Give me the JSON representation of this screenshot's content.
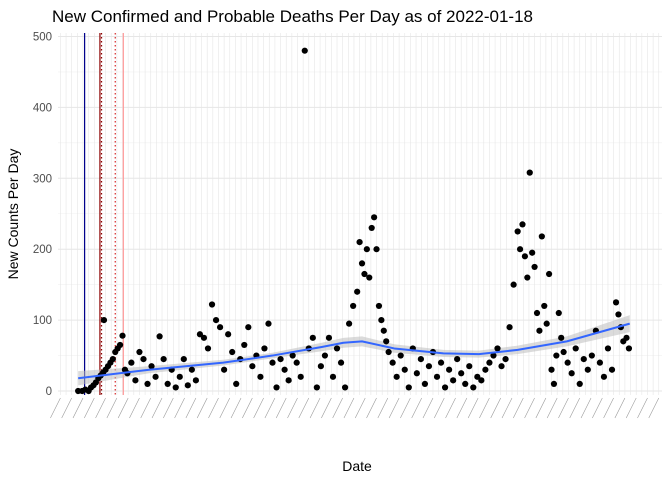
{
  "chart_data": {
    "type": "scatter",
    "title": "New Confirmed and Probable Deaths Per Day as of 2022-01-18",
    "xlabel": "Date",
    "ylabel": "New Counts Per Day",
    "ylim": [
      0,
      500
    ],
    "y_ticks": [
      0,
      100,
      200,
      300,
      400,
      500
    ],
    "xlim": [
      "2020-02-09",
      "2022-02-27"
    ],
    "x_tick_labels": "illegible",
    "grid": true,
    "legend": "none",
    "colors": {
      "points": "#000000",
      "trend": "#3366ff",
      "band": "#bdbdbd",
      "grid_major": "#e6e6e6",
      "grid_minor": "#f0f0f0",
      "vline_navy": "#00008b",
      "vline_darkred": "#8b0000",
      "vline_red_dotted": "#d62728",
      "vline_pink": "#ff9999"
    },
    "reference_lines": [
      {
        "date": "2020-03-13",
        "style": "solid",
        "color": "#00008b"
      },
      {
        "date": "2020-04-01",
        "style": "solid",
        "color": "#8b0000"
      },
      {
        "date": "2020-04-03",
        "style": "dotted",
        "color": "#8b0000"
      },
      {
        "date": "2020-04-20",
        "style": "dotted",
        "color": "#d62728"
      },
      {
        "date": "2020-04-30",
        "style": "solid",
        "color": "#ff9999"
      }
    ],
    "series": [
      {
        "values": [
          [
            "2020-03-05",
            0
          ],
          [
            "2020-03-10",
            0
          ],
          [
            "2020-03-14",
            2
          ],
          [
            "2020-03-18",
            0
          ],
          [
            "2020-03-21",
            5
          ],
          [
            "2020-03-24",
            8
          ],
          [
            "2020-03-27",
            12
          ],
          [
            "2020-03-30",
            18
          ],
          [
            "2020-04-02",
            22
          ],
          [
            "2020-04-05",
            26
          ],
          [
            "2020-04-06",
            100
          ],
          [
            "2020-04-08",
            30
          ],
          [
            "2020-04-11",
            35
          ],
          [
            "2020-04-14",
            40
          ],
          [
            "2020-04-17",
            45
          ],
          [
            "2020-04-20",
            55
          ],
          [
            "2020-04-23",
            60
          ],
          [
            "2020-04-26",
            65
          ],
          [
            "2020-04-29",
            78
          ],
          [
            "2020-05-02",
            30
          ],
          [
            "2020-05-05",
            25
          ],
          [
            "2020-05-10",
            40
          ],
          [
            "2020-05-15",
            15
          ],
          [
            "2020-05-20",
            55
          ],
          [
            "2020-05-25",
            45
          ],
          [
            "2020-05-30",
            10
          ],
          [
            "2020-06-04",
            35
          ],
          [
            "2020-06-09",
            20
          ],
          [
            "2020-06-14",
            77
          ],
          [
            "2020-06-19",
            45
          ],
          [
            "2020-06-24",
            10
          ],
          [
            "2020-06-29",
            30
          ],
          [
            "2020-07-04",
            5
          ],
          [
            "2020-07-09",
            20
          ],
          [
            "2020-07-14",
            45
          ],
          [
            "2020-07-19",
            8
          ],
          [
            "2020-07-24",
            30
          ],
          [
            "2020-07-29",
            15
          ],
          [
            "2020-08-03",
            80
          ],
          [
            "2020-08-08",
            75
          ],
          [
            "2020-08-13",
            60
          ],
          [
            "2020-08-18",
            122
          ],
          [
            "2020-08-23",
            100
          ],
          [
            "2020-08-28",
            90
          ],
          [
            "2020-09-02",
            30
          ],
          [
            "2020-09-07",
            80
          ],
          [
            "2020-09-12",
            55
          ],
          [
            "2020-09-17",
            10
          ],
          [
            "2020-09-22",
            45
          ],
          [
            "2020-09-27",
            65
          ],
          [
            "2020-10-02",
            90
          ],
          [
            "2020-10-07",
            35
          ],
          [
            "2020-10-12",
            50
          ],
          [
            "2020-10-17",
            20
          ],
          [
            "2020-10-22",
            60
          ],
          [
            "2020-10-27",
            95
          ],
          [
            "2020-11-01",
            40
          ],
          [
            "2020-11-06",
            5
          ],
          [
            "2020-11-11",
            45
          ],
          [
            "2020-11-16",
            30
          ],
          [
            "2020-11-21",
            15
          ],
          [
            "2020-11-26",
            50
          ],
          [
            "2020-12-01",
            40
          ],
          [
            "2020-12-06",
            20
          ],
          [
            "2020-12-11",
            480
          ],
          [
            "2020-12-16",
            60
          ],
          [
            "2020-12-21",
            75
          ],
          [
            "2020-12-26",
            5
          ],
          [
            "2020-12-31",
            35
          ],
          [
            "2021-01-05",
            50
          ],
          [
            "2021-01-10",
            75
          ],
          [
            "2021-01-15",
            20
          ],
          [
            "2021-01-20",
            60
          ],
          [
            "2021-01-25",
            40
          ],
          [
            "2021-01-30",
            5
          ],
          [
            "2021-02-04",
            95
          ],
          [
            "2021-02-09",
            120
          ],
          [
            "2021-02-14",
            140
          ],
          [
            "2021-02-17",
            210
          ],
          [
            "2021-02-20",
            180
          ],
          [
            "2021-02-23",
            165
          ],
          [
            "2021-02-26",
            200
          ],
          [
            "2021-03-01",
            160
          ],
          [
            "2021-03-04",
            230
          ],
          [
            "2021-03-07",
            245
          ],
          [
            "2021-03-10",
            200
          ],
          [
            "2021-03-13",
            120
          ],
          [
            "2021-03-16",
            100
          ],
          [
            "2021-03-19",
            85
          ],
          [
            "2021-03-22",
            70
          ],
          [
            "2021-03-25",
            55
          ],
          [
            "2021-03-30",
            40
          ],
          [
            "2021-04-04",
            20
          ],
          [
            "2021-04-09",
            50
          ],
          [
            "2021-04-14",
            30
          ],
          [
            "2021-04-19",
            5
          ],
          [
            "2021-04-24",
            60
          ],
          [
            "2021-04-29",
            25
          ],
          [
            "2021-05-04",
            45
          ],
          [
            "2021-05-09",
            10
          ],
          [
            "2021-05-14",
            35
          ],
          [
            "2021-05-19",
            55
          ],
          [
            "2021-05-24",
            20
          ],
          [
            "2021-05-29",
            40
          ],
          [
            "2021-06-03",
            5
          ],
          [
            "2021-06-08",
            30
          ],
          [
            "2021-06-13",
            15
          ],
          [
            "2021-06-18",
            45
          ],
          [
            "2021-06-23",
            25
          ],
          [
            "2021-06-28",
            10
          ],
          [
            "2021-07-03",
            35
          ],
          [
            "2021-07-08",
            5
          ],
          [
            "2021-07-13",
            20
          ],
          [
            "2021-07-18",
            15
          ],
          [
            "2021-07-23",
            30
          ],
          [
            "2021-07-28",
            40
          ],
          [
            "2021-08-02",
            50
          ],
          [
            "2021-08-07",
            60
          ],
          [
            "2021-08-12",
            35
          ],
          [
            "2021-08-17",
            45
          ],
          [
            "2021-08-22",
            90
          ],
          [
            "2021-08-27",
            150
          ],
          [
            "2021-09-01",
            225
          ],
          [
            "2021-09-04",
            200
          ],
          [
            "2021-09-07",
            235
          ],
          [
            "2021-09-10",
            190
          ],
          [
            "2021-09-13",
            160
          ],
          [
            "2021-09-16",
            308
          ],
          [
            "2021-09-19",
            195
          ],
          [
            "2021-09-22",
            175
          ],
          [
            "2021-09-25",
            110
          ],
          [
            "2021-09-28",
            85
          ],
          [
            "2021-10-01",
            218
          ],
          [
            "2021-10-04",
            120
          ],
          [
            "2021-10-07",
            95
          ],
          [
            "2021-10-10",
            165
          ],
          [
            "2021-10-13",
            30
          ],
          [
            "2021-10-16",
            10
          ],
          [
            "2021-10-19",
            50
          ],
          [
            "2021-10-22",
            110
          ],
          [
            "2021-10-25",
            75
          ],
          [
            "2021-10-28",
            55
          ],
          [
            "2021-11-02",
            40
          ],
          [
            "2021-11-07",
            25
          ],
          [
            "2021-11-12",
            60
          ],
          [
            "2021-11-17",
            10
          ],
          [
            "2021-11-22",
            45
          ],
          [
            "2021-11-27",
            30
          ],
          [
            "2021-12-02",
            50
          ],
          [
            "2021-12-07",
            85
          ],
          [
            "2021-12-12",
            40
          ],
          [
            "2021-12-17",
            20
          ],
          [
            "2021-12-22",
            60
          ],
          [
            "2021-12-27",
            30
          ],
          [
            "2022-01-01",
            125
          ],
          [
            "2022-01-04",
            108
          ],
          [
            "2022-01-07",
            90
          ],
          [
            "2022-01-10",
            70
          ],
          [
            "2022-01-14",
            75
          ],
          [
            "2022-01-17",
            60
          ]
        ]
      }
    ],
    "trend": [
      [
        "2020-03-05",
        18
      ],
      [
        "2020-06-01",
        30
      ],
      [
        "2020-09-01",
        40
      ],
      [
        "2020-11-01",
        50
      ],
      [
        "2021-01-01",
        62
      ],
      [
        "2021-01-28",
        68
      ],
      [
        "2021-02-20",
        70
      ],
      [
        "2021-04-01",
        60
      ],
      [
        "2021-06-01",
        53
      ],
      [
        "2021-07-15",
        52
      ],
      [
        "2021-09-01",
        58
      ],
      [
        "2021-11-01",
        70
      ],
      [
        "2022-01-18",
        95
      ]
    ],
    "trend_band_halfwidth": [
      10,
      5,
      4,
      4,
      6,
      7,
      7,
      6,
      5,
      5,
      6,
      7,
      12
    ]
  }
}
